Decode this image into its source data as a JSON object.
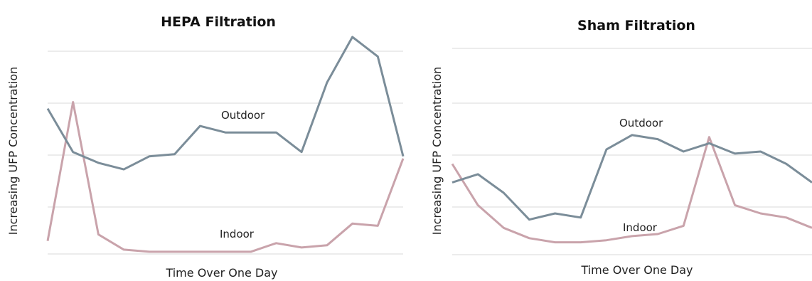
{
  "chart_data": [
    {
      "type": "line",
      "title": "HEPA Filtration",
      "xlabel": "Time Over One Day",
      "ylabel": "Increasing UFP Concentration",
      "ylim": [
        0,
        100
      ],
      "grid": true,
      "legend": "inline labels",
      "x": [
        0,
        1,
        2,
        3,
        4,
        5,
        6,
        7,
        8,
        9,
        10,
        11,
        12,
        13,
        14
      ],
      "series": [
        {
          "name": "Outdoor",
          "color": "#7b8d99",
          "values": [
            67,
            47,
            42,
            39,
            45,
            46,
            59,
            56,
            56,
            56,
            47,
            79,
            100,
            91,
            45
          ]
        },
        {
          "name": "Indoor",
          "color": "#c9a3ab",
          "values": [
            6,
            70,
            9,
            2,
            1,
            1,
            1,
            1,
            1,
            5,
            3,
            4,
            14,
            13,
            44
          ]
        }
      ]
    },
    {
      "type": "line",
      "title": "Sham Filtration",
      "xlabel": "Time Over One Day",
      "ylabel": "Increasing UFP Concentration",
      "ylim": [
        0,
        100
      ],
      "grid": true,
      "legend": "inline labels",
      "x": [
        0,
        1,
        2,
        3,
        4,
        5,
        6,
        7,
        8,
        9,
        10,
        11,
        12,
        13,
        14
      ],
      "series": [
        {
          "name": "Outdoor",
          "color": "#7b8d99",
          "values": [
            35,
            39,
            30,
            17,
            20,
            18,
            51,
            58,
            56,
            50,
            54,
            49,
            50,
            44,
            35
          ]
        },
        {
          "name": "Indoor",
          "color": "#c9a3ab",
          "values": [
            44,
            24,
            13,
            8,
            6,
            6,
            7,
            9,
            10,
            14,
            57,
            24,
            20,
            18,
            13
          ]
        }
      ]
    }
  ]
}
